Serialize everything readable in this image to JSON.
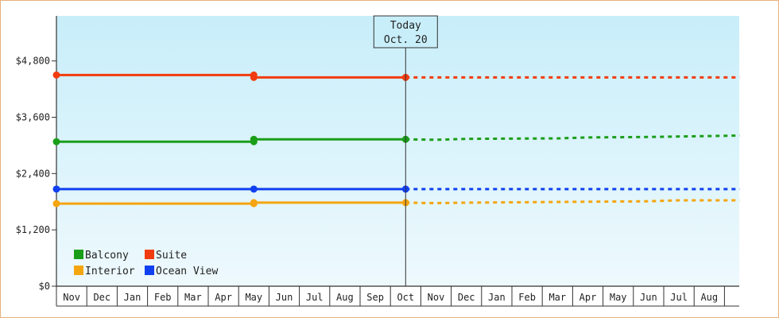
{
  "chart_data": {
    "type": "line",
    "title": "",
    "xlabel": "",
    "ylabel": "",
    "ylim": [
      0,
      5760
    ],
    "y_ticks": [
      0,
      1200,
      2400,
      3600,
      4800
    ],
    "y_tick_labels": [
      "$0",
      "$1,200",
      "$2,400",
      "$3,600",
      "$4,800"
    ],
    "x_months": [
      "Nov",
      "Dec",
      "Jan",
      "Feb",
      "Mar",
      "Apr",
      "May",
      "Jun",
      "Jul",
      "Aug",
      "Sep",
      "Oct",
      "Nov",
      "Dec",
      "Jan",
      "Feb",
      "Mar",
      "Apr",
      "May",
      "Jun",
      "Jul",
      "Aug"
    ],
    "today_index": 11,
    "today_label": [
      "Today",
      "Oct. 20"
    ],
    "grid": false,
    "legend_position": "bottom-left",
    "colors": {
      "balcony": "#1a9e1a",
      "suite": "#f23c0f",
      "interior": "#f5a50f",
      "ocean_view": "#1040f0",
      "plot_top": "#c8eefa",
      "plot_bottom": "#eef9fd",
      "axis": "#333333"
    },
    "series": [
      {
        "name": "Balcony",
        "color": "#1a9e1a",
        "historical": [
          [
            0,
            3080
          ],
          [
            6,
            3080
          ],
          [
            6,
            3130
          ],
          [
            11,
            3130
          ]
        ],
        "forecast": [
          [
            11,
            3130
          ],
          [
            12,
            3120
          ],
          [
            13,
            3140
          ],
          [
            16,
            3150
          ],
          [
            17,
            3170
          ],
          [
            19,
            3180
          ],
          [
            21,
            3200
          ],
          [
            22,
            3210
          ]
        ]
      },
      {
        "name": "Suite",
        "color": "#f23c0f",
        "historical": [
          [
            0,
            4500
          ],
          [
            6,
            4500
          ],
          [
            6,
            4450
          ],
          [
            11,
            4450
          ]
        ],
        "forecast": [
          [
            11,
            4450
          ],
          [
            22,
            4450
          ]
        ]
      },
      {
        "name": "Interior",
        "color": "#f5a50f",
        "historical": [
          [
            0,
            1760
          ],
          [
            6,
            1760
          ],
          [
            6,
            1780
          ],
          [
            11,
            1780
          ]
        ],
        "forecast": [
          [
            11,
            1780
          ],
          [
            12,
            1770
          ],
          [
            13,
            1780
          ],
          [
            15,
            1790
          ],
          [
            17,
            1800
          ],
          [
            19,
            1810
          ],
          [
            20,
            1830
          ],
          [
            22,
            1830
          ]
        ]
      },
      {
        "name": "Ocean View",
        "color": "#1040f0",
        "historical": [
          [
            0,
            2070
          ],
          [
            6,
            2070
          ],
          [
            11,
            2070
          ]
        ],
        "forecast": [
          [
            11,
            2070
          ],
          [
            22,
            2070
          ]
        ]
      }
    ]
  }
}
